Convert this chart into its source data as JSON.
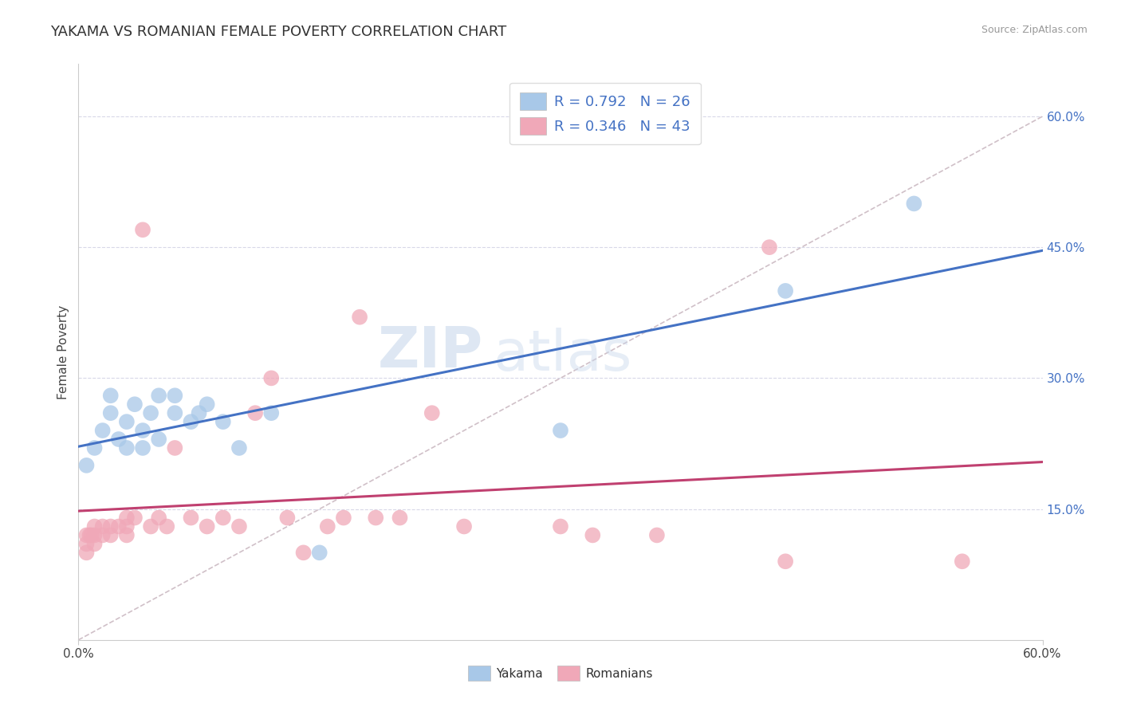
{
  "title": "YAKAMA VS ROMANIAN FEMALE POVERTY CORRELATION CHART",
  "source": "Source: ZipAtlas.com",
  "ylabel": "Female Poverty",
  "xlim": [
    0.0,
    0.6
  ],
  "ylim": [
    0.0,
    0.66
  ],
  "ytick_vals": [
    0.15,
    0.3,
    0.45,
    0.6
  ],
  "ytick_labels": [
    "15.0%",
    "30.0%",
    "45.0%",
    "60.0%"
  ],
  "legend_r1": "R = 0.792",
  "legend_n1": "N = 26",
  "legend_r2": "R = 0.346",
  "legend_n2": "N = 43",
  "color_yakama": "#a8c8e8",
  "color_romanian": "#f0a8b8",
  "color_line_yakama": "#4472c4",
  "color_line_romanian": "#c04070",
  "color_diag": "#d0c0c8",
  "watermark_zip": "ZIP",
  "watermark_atlas": "atlas",
  "background_color": "#ffffff",
  "grid_color": "#d8d8e8",
  "yakama_x": [
    0.005,
    0.01,
    0.015,
    0.02,
    0.025,
    0.02,
    0.03,
    0.03,
    0.035,
    0.04,
    0.04,
    0.045,
    0.05,
    0.05,
    0.06,
    0.06,
    0.07,
    0.075,
    0.08,
    0.09,
    0.1,
    0.12,
    0.15,
    0.3,
    0.44,
    0.52
  ],
  "yakama_y": [
    0.2,
    0.22,
    0.24,
    0.26,
    0.23,
    0.28,
    0.25,
    0.22,
    0.27,
    0.24,
    0.22,
    0.26,
    0.23,
    0.28,
    0.26,
    0.28,
    0.25,
    0.26,
    0.27,
    0.25,
    0.22,
    0.26,
    0.1,
    0.24,
    0.4,
    0.5
  ],
  "romanian_x": [
    0.005,
    0.005,
    0.005,
    0.007,
    0.008,
    0.01,
    0.01,
    0.01,
    0.015,
    0.015,
    0.02,
    0.02,
    0.025,
    0.03,
    0.03,
    0.03,
    0.035,
    0.04,
    0.045,
    0.05,
    0.055,
    0.06,
    0.07,
    0.08,
    0.09,
    0.1,
    0.11,
    0.12,
    0.13,
    0.14,
    0.155,
    0.165,
    0.175,
    0.185,
    0.2,
    0.22,
    0.24,
    0.3,
    0.32,
    0.36,
    0.43,
    0.44,
    0.55
  ],
  "romanian_y": [
    0.12,
    0.11,
    0.1,
    0.12,
    0.12,
    0.12,
    0.13,
    0.11,
    0.13,
    0.12,
    0.12,
    0.13,
    0.13,
    0.14,
    0.13,
    0.12,
    0.14,
    0.47,
    0.13,
    0.14,
    0.13,
    0.22,
    0.14,
    0.13,
    0.14,
    0.13,
    0.26,
    0.3,
    0.14,
    0.1,
    0.13,
    0.14,
    0.37,
    0.14,
    0.14,
    0.26,
    0.13,
    0.13,
    0.12,
    0.12,
    0.45,
    0.09,
    0.09
  ]
}
